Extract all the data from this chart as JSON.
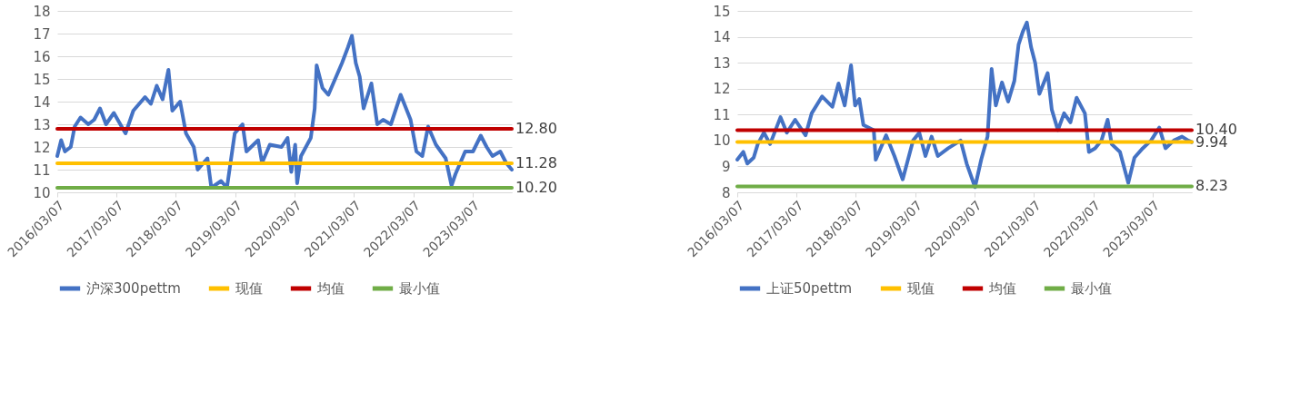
{
  "chart_data": [
    {
      "type": "line",
      "xlim": [
        "2016-03-07",
        "2023-11-03"
      ],
      "xticks": [
        {
          "value": "2016-03-07",
          "label": "2016/03/07"
        },
        {
          "value": "2017-03-07",
          "label": "2017/03/07"
        },
        {
          "value": "2018-03-07",
          "label": "2018/03/07"
        },
        {
          "value": "2019-03-07",
          "label": "2019/03/07"
        },
        {
          "value": "2020-03-07",
          "label": "2020/03/07"
        },
        {
          "value": "2021-03-07",
          "label": "2021/03/07"
        },
        {
          "value": "2022-03-07",
          "label": "2022/03/07"
        },
        {
          "value": "2023-03-07",
          "label": "2023/03/07"
        }
      ],
      "ylim": [
        10,
        18
      ],
      "yticks": [
        10,
        11,
        12,
        13,
        14,
        15,
        16,
        17,
        18
      ],
      "grid": "y",
      "legend": "bottom",
      "series": [
        {
          "name": "沪深300pettm",
          "color": "#4472c4",
          "x": [
            "2016-03-07",
            "2016-03-31",
            "2016-04-23",
            "2016-05-29",
            "2016-06-22",
            "2016-07-28",
            "2016-09-14",
            "2016-10-20",
            "2016-11-25",
            "2017-01-01",
            "2017-02-18",
            "2017-05-01",
            "2017-06-18",
            "2017-08-29",
            "2017-10-04",
            "2017-11-09",
            "2017-12-15",
            "2018-01-20",
            "2018-02-13",
            "2018-04-02",
            "2018-05-08",
            "2018-06-25",
            "2018-07-19",
            "2018-09-17",
            "2018-10-11",
            "2018-12-10",
            "2019-01-15",
            "2019-03-04",
            "2019-04-21",
            "2019-05-15",
            "2019-07-26",
            "2019-08-19",
            "2019-10-06",
            "2019-12-17",
            "2020-01-23",
            "2020-02-15",
            "2020-03-10",
            "2020-03-22",
            "2020-04-15",
            "2020-06-14",
            "2020-07-08",
            "2020-07-20",
            "2020-08-25",
            "2020-09-30",
            "2020-11-17",
            "2020-12-23",
            "2021-01-29",
            "2021-02-22",
            "2021-03-18",
            "2021-04-11",
            "2021-05-05",
            "2021-06-22",
            "2021-07-28",
            "2021-09-02",
            "2021-10-20",
            "2021-12-19",
            "2022-02-18",
            "2022-03-26",
            "2022-05-01",
            "2022-06-06",
            "2022-07-24",
            "2022-09-22",
            "2022-10-28",
            "2022-11-21",
            "2023-01-20",
            "2023-03-09",
            "2023-04-26",
            "2023-06-01",
            "2023-07-07",
            "2023-08-24",
            "2023-09-29",
            "2023-11-03"
          ],
          "values": [
            11.6,
            12.3,
            11.8,
            12.0,
            12.9,
            13.3,
            13.0,
            13.2,
            13.7,
            13.0,
            13.5,
            12.6,
            13.6,
            14.2,
            13.9,
            14.7,
            14.1,
            15.4,
            13.6,
            14.0,
            12.6,
            12.0,
            11.0,
            11.5,
            10.2,
            10.5,
            10.2,
            12.6,
            13.0,
            11.8,
            12.3,
            11.3,
            12.1,
            12.0,
            12.4,
            10.9,
            12.1,
            10.4,
            11.6,
            12.4,
            13.7,
            15.6,
            14.6,
            14.3,
            15.1,
            15.7,
            16.4,
            16.9,
            15.7,
            15.1,
            13.7,
            14.8,
            13.0,
            13.2,
            13.0,
            14.3,
            13.2,
            11.8,
            11.6,
            12.9,
            12.1,
            11.5,
            10.3,
            10.8,
            11.8,
            11.8,
            12.5,
            12.0,
            11.6,
            11.8,
            11.3,
            11.0
          ]
        },
        {
          "name": "现值",
          "color": "#ffc000",
          "x": [
            "2016-03-07",
            "2023-11-03"
          ],
          "values": [
            11.28,
            11.28
          ],
          "value_labels": [
            null,
            "11.28"
          ]
        },
        {
          "name": "均值",
          "color": "#c00000",
          "x": [
            "2016-03-07",
            "2023-11-03"
          ],
          "values": [
            12.8,
            12.8
          ],
          "value_labels": [
            null,
            "12.80"
          ]
        },
        {
          "name": "最小值",
          "color": "#70ad47",
          "x": [
            "2016-03-07",
            "2023-11-03"
          ],
          "values": [
            10.2,
            10.2
          ],
          "value_labels": [
            null,
            "10.20"
          ]
        }
      ]
    },
    {
      "type": "line",
      "xlim": [
        "2016-03-07",
        "2023-11-03"
      ],
      "xticks": [
        {
          "value": "2016-03-07",
          "label": "2016/03/07"
        },
        {
          "value": "2017-03-07",
          "label": "2017/03/07"
        },
        {
          "value": "2018-03-07",
          "label": "2018/03/07"
        },
        {
          "value": "2019-03-07",
          "label": "2019/03/07"
        },
        {
          "value": "2020-03-07",
          "label": "2020/03/07"
        },
        {
          "value": "2021-03-07",
          "label": "2021/03/07"
        },
        {
          "value": "2022-03-07",
          "label": "2022/03/07"
        },
        {
          "value": "2023-03-07",
          "label": "2023/03/07"
        }
      ],
      "ylim": [
        8,
        15
      ],
      "yticks": [
        8,
        9,
        10,
        11,
        12,
        13,
        14,
        15
      ],
      "grid": "y",
      "legend": "bottom",
      "series": [
        {
          "name": "上证50pettm",
          "color": "#4472c4",
          "x": [
            "2016-03-07",
            "2016-04-13",
            "2016-05-08",
            "2016-06-16",
            "2016-07-11",
            "2016-08-18",
            "2016-09-25",
            "2016-11-28",
            "2017-01-06",
            "2017-02-26",
            "2017-05-01",
            "2017-06-08",
            "2017-08-11",
            "2017-10-13",
            "2017-11-20",
            "2017-12-28",
            "2018-02-05",
            "2018-03-02",
            "2018-03-28",
            "2018-04-22",
            "2018-06-25",
            "2018-07-07",
            "2018-09-09",
            "2018-10-30",
            "2018-12-20",
            "2019-02-22",
            "2019-04-01",
            "2019-05-09",
            "2019-06-16",
            "2019-07-24",
            "2019-09-26",
            "2019-12-11",
            "2020-01-18",
            "2020-03-09",
            "2020-04-16",
            "2020-05-25",
            "2020-06-19",
            "2020-07-15",
            "2020-08-22",
            "2020-09-29",
            "2020-11-06",
            "2020-12-02",
            "2020-12-28",
            "2021-01-22",
            "2021-02-17",
            "2021-03-14",
            "2021-04-09",
            "2021-05-30",
            "2021-06-24",
            "2021-08-01",
            "2021-09-08",
            "2021-10-17",
            "2021-11-24",
            "2022-01-14",
            "2022-02-08",
            "2022-03-18",
            "2022-04-26",
            "2022-06-03",
            "2022-06-28",
            "2022-08-18",
            "2022-10-08",
            "2022-11-15",
            "2023-01-05",
            "2023-02-25",
            "2023-04-17",
            "2023-05-25",
            "2023-07-15",
            "2023-09-04",
            "2023-10-12",
            "2023-11-03"
          ],
          "values": [
            9.26,
            9.56,
            9.11,
            9.34,
            9.86,
            10.3,
            9.86,
            10.9,
            10.3,
            10.8,
            10.2,
            11.05,
            11.7,
            11.3,
            12.2,
            11.35,
            12.9,
            11.35,
            11.6,
            10.6,
            10.4,
            9.26,
            10.2,
            9.4,
            8.5,
            10.0,
            10.3,
            9.4,
            10.15,
            9.4,
            9.7,
            10.0,
            9.1,
            8.2,
            9.26,
            10.15,
            12.76,
            11.35,
            12.24,
            11.5,
            12.3,
            13.7,
            14.2,
            14.55,
            13.6,
            13.0,
            11.8,
            12.6,
            11.2,
            10.4,
            11.05,
            10.7,
            11.65,
            11.05,
            9.56,
            9.7,
            10.0,
            10.8,
            9.86,
            9.56,
            8.37,
            9.34,
            9.7,
            10.0,
            10.5,
            9.7,
            10.0,
            10.15,
            10.0,
            9.94
          ]
        },
        {
          "name": "现值",
          "color": "#ffc000",
          "x": [
            "2016-03-07",
            "2023-11-03"
          ],
          "values": [
            9.94,
            9.94
          ],
          "value_labels": [
            null,
            "9.94"
          ]
        },
        {
          "name": "均值",
          "color": "#c00000",
          "x": [
            "2016-03-07",
            "2023-11-03"
          ],
          "values": [
            10.4,
            10.4
          ],
          "value_labels": [
            null,
            "10.40"
          ]
        },
        {
          "name": "最小值",
          "color": "#70ad47",
          "x": [
            "2016-03-07",
            "2023-11-03"
          ],
          "values": [
            8.23,
            8.23
          ],
          "value_labels": [
            null,
            "8.23"
          ]
        }
      ]
    }
  ]
}
